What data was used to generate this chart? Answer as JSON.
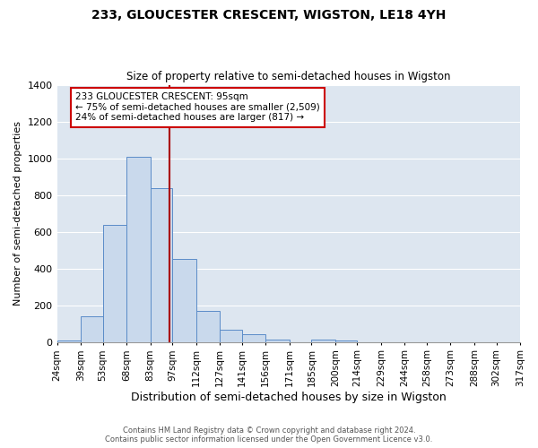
{
  "title": "233, GLOUCESTER CRESCENT, WIGSTON, LE18 4YH",
  "subtitle": "Size of property relative to semi-detached houses in Wigston",
  "xlabel": "Distribution of semi-detached houses by size in Wigston",
  "ylabel": "Number of semi-detached properties",
  "bin_edges": [
    24,
    39,
    53,
    68,
    83,
    97,
    112,
    127,
    141,
    156,
    171,
    185,
    200,
    214,
    229,
    244,
    258,
    273,
    288,
    302,
    317
  ],
  "bar_heights": [
    10,
    138,
    635,
    1010,
    835,
    450,
    170,
    65,
    40,
    15,
    0,
    15,
    10,
    0,
    0,
    0,
    0,
    0,
    0,
    0
  ],
  "bar_color": "#c9d9ec",
  "bar_edge_color": "#5b8cc8",
  "property_size": 95,
  "vline_color": "#aa0000",
  "annotation_title": "233 GLOUCESTER CRESCENT: 95sqm",
  "annotation_line1": "← 75% of semi-detached houses are smaller (2,509)",
  "annotation_line2": "24% of semi-detached houses are larger (817) →",
  "annotation_box_color": "#ffffff",
  "annotation_box_edge": "#cc0000",
  "ylim": [
    0,
    1400
  ],
  "yticks": [
    0,
    200,
    400,
    600,
    800,
    1000,
    1200,
    1400
  ],
  "background_color": "#dde6f0",
  "footnote1": "Contains HM Land Registry data © Crown copyright and database right 2024.",
  "footnote2": "Contains public sector information licensed under the Open Government Licence v3.0."
}
